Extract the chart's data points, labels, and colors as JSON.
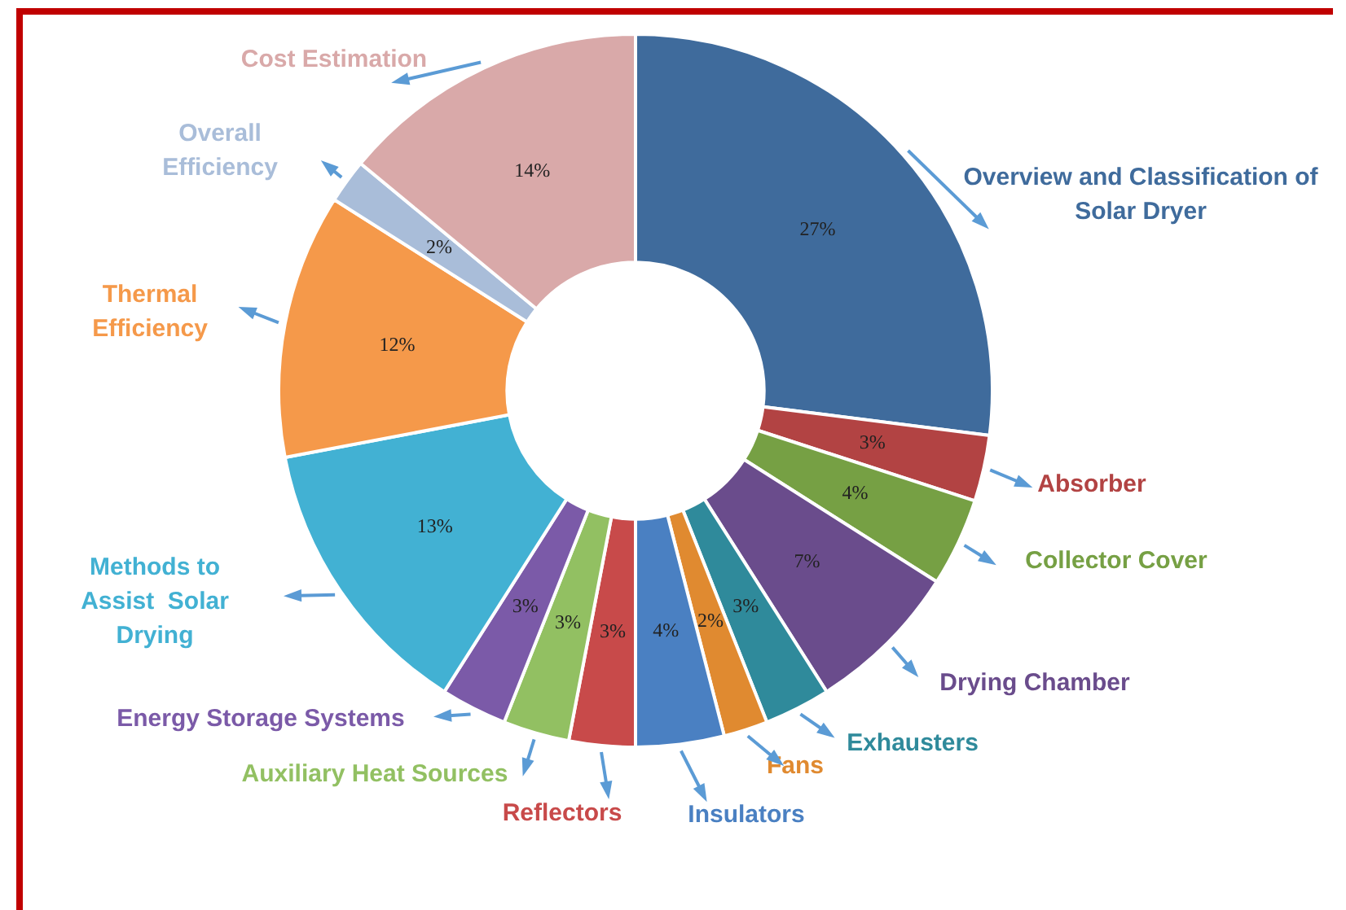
{
  "chart_data": {
    "type": "donut",
    "categories": [
      "Overview and Classification of Solar Dryer",
      "Absorber",
      "Collector Cover",
      "Drying Chamber",
      "Exhausters",
      "Fans",
      "Insulators",
      "Reflectors",
      "Auxiliary Heat Sources",
      "Energy Storage Systems",
      "Methods to Assist  Solar Drying",
      "Thermal Efficiency",
      "Overall Efficiency",
      "Cost Estimation"
    ],
    "values": [
      27,
      3,
      4,
      7,
      3,
      2,
      4,
      3,
      3,
      3,
      13,
      12,
      2,
      14
    ],
    "colors": [
      "#3f6b9c",
      "#b24343",
      "#76a044",
      "#6a4c8c",
      "#2f8a9b",
      "#e08a30",
      "#4a80c2",
      "#c84a4a",
      "#92c062",
      "#7b5aa8",
      "#42b1d3",
      "#f5994a",
      "#a9bdd9",
      "#d9a9a9"
    ],
    "value_labels": [
      "27%",
      "3%",
      "4%",
      "7%",
      "3%",
      "2%",
      "4%",
      "3%",
      "3%",
      "3%",
      "13%",
      "12%",
      "2%",
      "14%"
    ],
    "legend": false
  }
}
